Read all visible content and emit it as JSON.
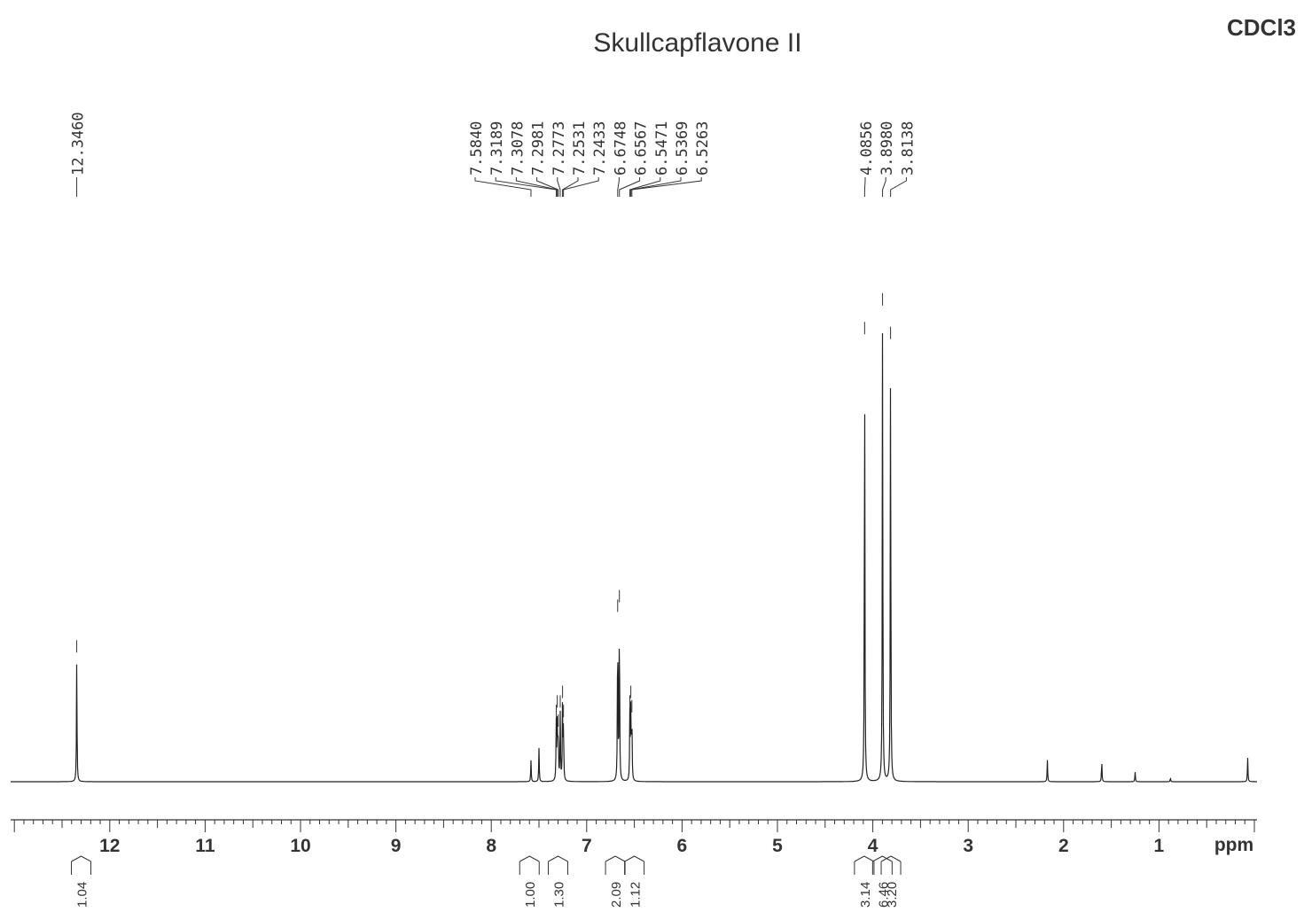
{
  "title": "Skullcapflavone II",
  "solvent": "CDCl3",
  "chart_data": {
    "type": "line",
    "title": "Skullcapflavone II",
    "xlabel": "ppm",
    "ylabel": "",
    "xlim": [
      13.0,
      0.0
    ],
    "x_reversed": true,
    "grid": false,
    "x_ticks": [
      12,
      11,
      10,
      9,
      8,
      7,
      6,
      5,
      4,
      3,
      2,
      1
    ],
    "peak_labels": [
      {
        "group": "low",
        "labels": [
          "12.3460"
        ]
      },
      {
        "group": "aromatic",
        "labels": [
          "7.5840",
          "7.3189",
          "7.3078",
          "7.2981",
          "7.2773",
          "7.2531",
          "7.2433",
          "6.6748",
          "6.6567",
          "6.5471",
          "6.5369",
          "6.5263"
        ]
      },
      {
        "group": "methoxy",
        "labels": [
          "4.0856",
          "3.8980",
          "3.8138"
        ]
      }
    ],
    "peaks": [
      {
        "ppm": 12.346,
        "height": 0.255
      },
      {
        "ppm": 7.584,
        "height": 0.045
      },
      {
        "ppm": 7.5,
        "height": 0.07
      },
      {
        "ppm": 7.319,
        "height": 0.12
      },
      {
        "ppm": 7.308,
        "height": 0.14
      },
      {
        "ppm": 7.298,
        "height": 0.1
      },
      {
        "ppm": 7.277,
        "height": 0.14
      },
      {
        "ppm": 7.253,
        "height": 0.16
      },
      {
        "ppm": 7.243,
        "height": 0.12
      },
      {
        "ppm": 6.675,
        "height": 0.34
      },
      {
        "ppm": 6.657,
        "height": 0.36
      },
      {
        "ppm": 6.547,
        "height": 0.14
      },
      {
        "ppm": 6.537,
        "height": 0.16
      },
      {
        "ppm": 6.526,
        "height": 0.13
      },
      {
        "ppm": 4.086,
        "height": 0.92
      },
      {
        "ppm": 3.898,
        "height": 0.98
      },
      {
        "ppm": 3.814,
        "height": 0.91
      },
      {
        "ppm": 2.17,
        "height": 0.045
      },
      {
        "ppm": 1.6,
        "height": 0.045
      },
      {
        "ppm": 1.25,
        "height": 0.02
      },
      {
        "ppm": 0.88,
        "height": 0.008
      },
      {
        "ppm": 0.07,
        "height": 0.05
      }
    ],
    "integrals": [
      {
        "ppm": 12.3,
        "value": "1.04"
      },
      {
        "ppm": 7.6,
        "value": "1.00"
      },
      {
        "ppm": 7.3,
        "value": "1.30"
      },
      {
        "ppm": 6.7,
        "value": "2.09"
      },
      {
        "ppm": 6.5,
        "value": "1.12"
      },
      {
        "ppm": 4.09,
        "value": "3.14"
      },
      {
        "ppm": 3.9,
        "value": "6.46"
      },
      {
        "ppm": 3.81,
        "value": "3.20"
      }
    ]
  }
}
